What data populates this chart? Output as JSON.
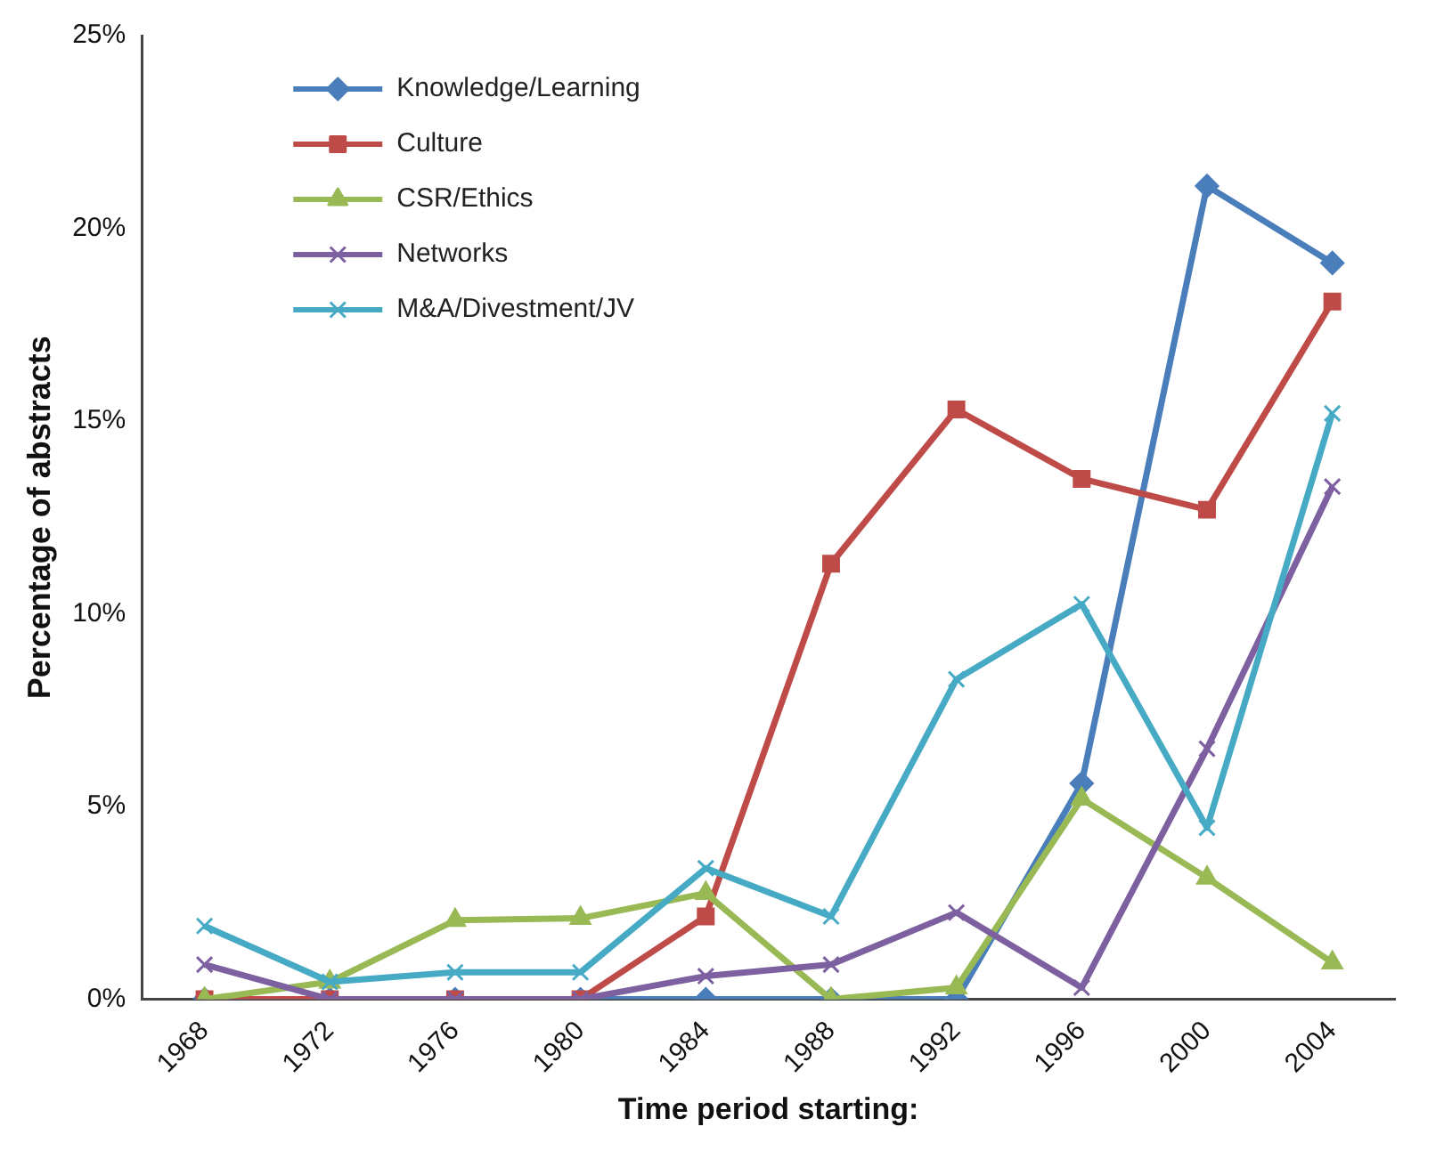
{
  "chart_data": {
    "type": "line",
    "xlabel": "Time period starting:",
    "ylabel": "Percentage of abstracts",
    "categories": [
      "1968",
      "1972",
      "1976",
      "1980",
      "1984",
      "1988",
      "1992",
      "1996",
      "2000",
      "2004"
    ],
    "series": [
      {
        "name": "Knowledge/Learning",
        "color": "#4a7ebb",
        "marker": "diamond",
        "values": [
          0,
          0,
          0,
          0,
          0,
          0,
          0,
          5.6,
          21.1,
          19.1
        ]
      },
      {
        "name": "Culture",
        "color": "#be4b48",
        "marker": "square",
        "values": [
          0,
          0,
          0,
          0,
          2.15,
          11.3,
          15.3,
          13.5,
          12.7,
          18.1
        ]
      },
      {
        "name": "CSR/Ethics",
        "color": "#98b954",
        "marker": "triangle",
        "values": [
          0,
          0.45,
          2.05,
          2.1,
          2.75,
          0,
          0.3,
          5.2,
          3.15,
          0.95
        ]
      },
      {
        "name": "Networks",
        "color": "#7d60a0",
        "marker": "cross",
        "values": [
          0.9,
          0,
          0,
          0,
          0.6,
          0.9,
          2.25,
          0.3,
          6.5,
          13.3
        ]
      },
      {
        "name": "M&A/Divestment/JV",
        "color": "#46aac5",
        "marker": "cross",
        "values": [
          1.9,
          0.45,
          0.7,
          0.7,
          3.4,
          2.15,
          8.3,
          10.25,
          4.45,
          15.2
        ]
      }
    ],
    "ylim": [
      0,
      25
    ],
    "yticks": [
      {
        "value": 0,
        "label": "0%"
      },
      {
        "value": 5,
        "label": "5%"
      },
      {
        "value": 10,
        "label": "10%"
      },
      {
        "value": 15,
        "label": "15%"
      },
      {
        "value": 20,
        "label": "20%"
      },
      {
        "value": 25,
        "label": "25%"
      }
    ],
    "grid": false,
    "legend": "top left",
    "line_style": "solid"
  }
}
